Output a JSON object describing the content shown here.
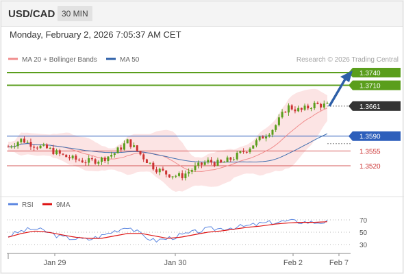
{
  "header": {
    "pair": "USD/CAD",
    "timeframe": "30 MIN"
  },
  "datetime": "Monday, February 2, 2026 7:05:37 AM CET",
  "credit": "Research © 2026 Trading Central",
  "colors": {
    "bullish": "#5a9e1c",
    "current": "#333333",
    "pivot": "#2d5fbb",
    "bearish": "#cc3333",
    "ma20": "#f08c8c",
    "ma50": "#3f6fb0",
    "bollinger": "#fbd9d9",
    "rsi": "#5b86e0",
    "rsi_ma": "#dd1111",
    "arrow": "#2d5fa8"
  },
  "legend": [
    {
      "label": "MA 20 + Bollinger Bands",
      "color": "#f08c8c"
    },
    {
      "label": "MA 50",
      "color": "#2d5fa8"
    }
  ],
  "rsi_legend": [
    {
      "label": "RSI",
      "color": "#5b86e0"
    },
    {
      "label": "9MA",
      "color": "#dd1111"
    }
  ],
  "chart_data": {
    "type": "candlestick",
    "instrument": "USD/CAD",
    "timeframe": "30 MIN",
    "x_ticks": [
      "Jan 29",
      "Jan 30",
      "Feb 2",
      "Feb 7"
    ],
    "levels": [
      {
        "value": 1.374,
        "label": "1.3740",
        "kind": "resistance"
      },
      {
        "value": 1.371,
        "label": "1.3710",
        "kind": "resistance"
      },
      {
        "value": 1.3661,
        "label": "1.3661",
        "kind": "current"
      },
      {
        "value": 1.359,
        "label": "1.3590",
        "kind": "pivot"
      },
      {
        "value": 1.3555,
        "label": "1.3555",
        "kind": "support"
      },
      {
        "value": 1.352,
        "label": "1.3520",
        "kind": "support"
      }
    ],
    "price_path": [
      1.3565,
      1.3582,
      1.3568,
      1.356,
      1.3545,
      1.3535,
      1.353,
      1.3535,
      1.355,
      1.3578,
      1.3545,
      1.3515,
      1.35,
      1.3495,
      1.3515,
      1.353,
      1.3525,
      1.354,
      1.356,
      1.3585,
      1.361,
      1.366,
      1.365,
      1.3665,
      1.3662
    ],
    "rsi_ticks": [
      70,
      50,
      30
    ],
    "rsi_path": [
      44,
      52,
      56,
      50,
      42,
      40,
      38,
      44,
      52,
      60,
      46,
      36,
      40,
      45,
      50,
      55,
      56,
      58,
      60,
      64,
      66,
      68,
      67,
      66,
      67
    ],
    "rsi_ma_path": [
      42,
      48,
      52,
      50,
      46,
      42,
      40,
      40,
      44,
      48,
      48,
      44,
      40,
      42,
      46,
      50,
      52,
      55,
      58,
      60,
      63,
      65,
      66,
      66,
      67
    ]
  }
}
